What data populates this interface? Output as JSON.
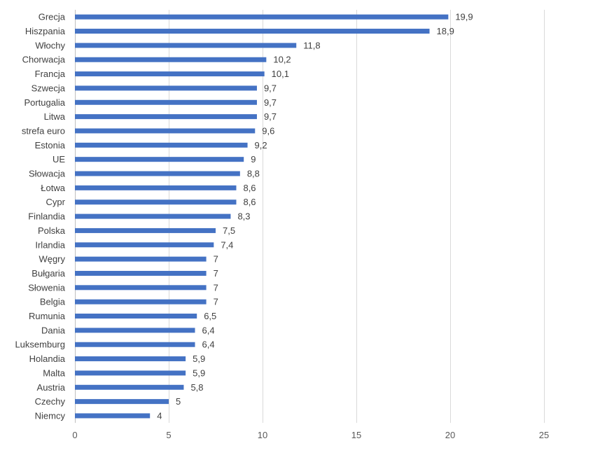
{
  "chart_data": {
    "type": "bar",
    "orientation": "horizontal",
    "title": "",
    "xlabel": "",
    "ylabel": "",
    "xlim": [
      0,
      25
    ],
    "x_ticks": [
      0,
      5,
      10,
      15,
      20,
      25
    ],
    "x_tick_labels": [
      "0",
      "5",
      "10",
      "15",
      "20",
      "25"
    ],
    "grid": "vertical",
    "legend": "none",
    "bar_color": "#4472c4",
    "categories": [
      "Grecja",
      "Hiszpania",
      "Włochy",
      "Chorwacja",
      "Francja",
      "Szwecja",
      "Portugalia",
      "Litwa",
      "strefa euro",
      "Estonia",
      "UE",
      "Słowacja",
      "Łotwa",
      "Cypr",
      "Finlandia",
      "Polska",
      "Irlandia",
      "Węgry",
      "Bułgaria",
      "Słowenia",
      "Belgia",
      "Rumunia",
      "Dania",
      "Luksemburg",
      "Holandia",
      "Malta",
      "Austria",
      "Czechy",
      "Niemcy"
    ],
    "values": [
      19.9,
      18.9,
      11.8,
      10.2,
      10.1,
      9.7,
      9.7,
      9.7,
      9.6,
      9.2,
      9,
      8.8,
      8.6,
      8.6,
      8.3,
      7.5,
      7.4,
      7,
      7,
      7,
      7,
      6.5,
      6.4,
      6.4,
      5.9,
      5.9,
      5.8,
      5,
      4
    ],
    "value_labels": [
      "19,9",
      "18,9",
      "11,8",
      "10,2",
      "10,1",
      "9,7",
      "9,7",
      "9,7",
      "9,6",
      "9,2",
      "9",
      "8,8",
      "8,6",
      "8,6",
      "8,3",
      "7,5",
      "7,4",
      "7",
      "7",
      "7",
      "7",
      "6,5",
      "6,4",
      "6,4",
      "5,9",
      "5,9",
      "5,8",
      "5",
      "4"
    ]
  }
}
